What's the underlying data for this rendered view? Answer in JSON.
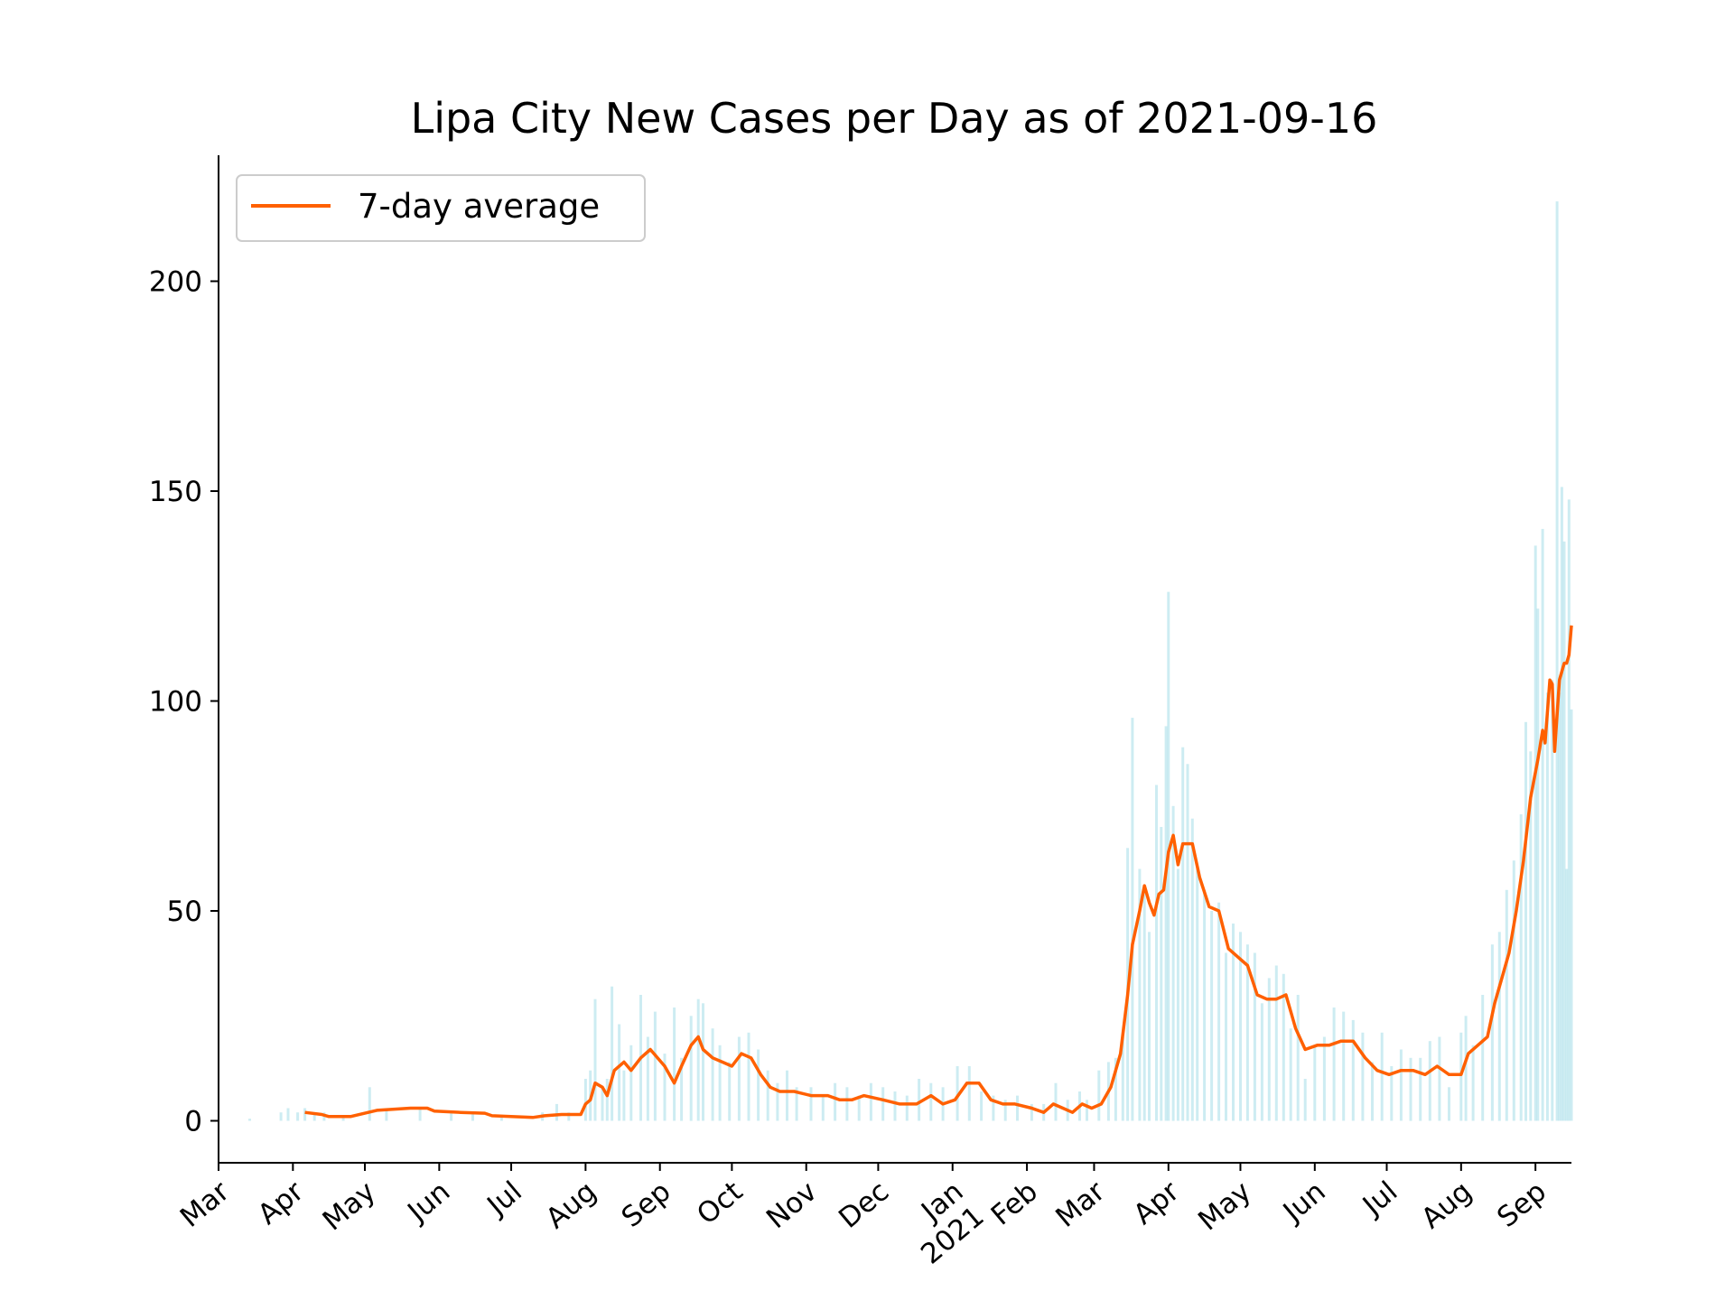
{
  "chart_data": {
    "type": "line",
    "title": "Lipa City New Cases per Day as of 2021-09-16",
    "xlabel": "",
    "ylabel": "",
    "x_range": [
      "2020-03-01",
      "2021-09-16"
    ],
    "ylim": [
      -10,
      230
    ],
    "y_ticks": [
      0,
      50,
      100,
      150,
      200
    ],
    "x_ticks": [
      {
        "date": "2020-03-01",
        "label": "Mar"
      },
      {
        "date": "2020-04-01",
        "label": "Apr"
      },
      {
        "date": "2020-05-01",
        "label": "May"
      },
      {
        "date": "2020-06-01",
        "label": "Jun"
      },
      {
        "date": "2020-07-01",
        "label": "Jul"
      },
      {
        "date": "2020-08-01",
        "label": "Aug"
      },
      {
        "date": "2020-09-01",
        "label": "Sep"
      },
      {
        "date": "2020-10-01",
        "label": "Oct"
      },
      {
        "date": "2020-11-01",
        "label": "Nov"
      },
      {
        "date": "2020-12-01",
        "label": "Dec"
      },
      {
        "date": "2021-01-01",
        "label": "Jan\n2021"
      },
      {
        "date": "2021-02-01",
        "label": "Feb"
      },
      {
        "date": "2021-03-01",
        "label": "Mar"
      },
      {
        "date": "2021-04-01",
        "label": "Apr"
      },
      {
        "date": "2021-05-01",
        "label": "May"
      },
      {
        "date": "2021-06-01",
        "label": "Jun"
      },
      {
        "date": "2021-07-01",
        "label": "Jul"
      },
      {
        "date": "2021-08-01",
        "label": "Aug"
      },
      {
        "date": "2021-09-01",
        "label": "Sep"
      }
    ],
    "grid": false,
    "legend_position": "top-left",
    "series": [
      {
        "name": "7-day average",
        "kind": "line",
        "color": "#ff6000",
        "points": [
          [
            "2020-04-06",
            2
          ],
          [
            "2020-04-13",
            1.5
          ],
          [
            "2020-04-16",
            1
          ],
          [
            "2020-04-25",
            1
          ],
          [
            "2020-05-06",
            2.5
          ],
          [
            "2020-05-20",
            3
          ],
          [
            "2020-05-27",
            3
          ],
          [
            "2020-05-30",
            2.3
          ],
          [
            "2020-06-10",
            2
          ],
          [
            "2020-06-20",
            1.8
          ],
          [
            "2020-06-23",
            1.2
          ],
          [
            "2020-07-10",
            0.8
          ],
          [
            "2020-07-15",
            1.2
          ],
          [
            "2020-07-22",
            1.5
          ],
          [
            "2020-07-30",
            1.5
          ],
          [
            "2020-08-01",
            4
          ],
          [
            "2020-08-03",
            5
          ],
          [
            "2020-08-05",
            9
          ],
          [
            "2020-08-08",
            8
          ],
          [
            "2020-08-10",
            6
          ],
          [
            "2020-08-13",
            12
          ],
          [
            "2020-08-17",
            14
          ],
          [
            "2020-08-20",
            12
          ],
          [
            "2020-08-24",
            15
          ],
          [
            "2020-08-28",
            17
          ],
          [
            "2020-09-03",
            13
          ],
          [
            "2020-09-07",
            9
          ],
          [
            "2020-09-10",
            13
          ],
          [
            "2020-09-14",
            18
          ],
          [
            "2020-09-17",
            20
          ],
          [
            "2020-09-19",
            17
          ],
          [
            "2020-09-23",
            15
          ],
          [
            "2020-09-27",
            14
          ],
          [
            "2020-10-01",
            13
          ],
          [
            "2020-10-05",
            16
          ],
          [
            "2020-10-09",
            15
          ],
          [
            "2020-10-13",
            11
          ],
          [
            "2020-10-17",
            8
          ],
          [
            "2020-10-21",
            7
          ],
          [
            "2020-10-27",
            7
          ],
          [
            "2020-11-03",
            6
          ],
          [
            "2020-11-10",
            6
          ],
          [
            "2020-11-15",
            5
          ],
          [
            "2020-11-20",
            5
          ],
          [
            "2020-11-25",
            6
          ],
          [
            "2020-12-03",
            5
          ],
          [
            "2020-12-10",
            4
          ],
          [
            "2020-12-17",
            4
          ],
          [
            "2020-12-23",
            6
          ],
          [
            "2020-12-28",
            4
          ],
          [
            "2021-01-02",
            5
          ],
          [
            "2021-01-07",
            9
          ],
          [
            "2021-01-12",
            9
          ],
          [
            "2021-01-17",
            5
          ],
          [
            "2021-01-22",
            4
          ],
          [
            "2021-01-27",
            4
          ],
          [
            "2021-02-03",
            3
          ],
          [
            "2021-02-08",
            2
          ],
          [
            "2021-02-12",
            4
          ],
          [
            "2021-02-16",
            3
          ],
          [
            "2021-02-20",
            2
          ],
          [
            "2021-02-24",
            4
          ],
          [
            "2021-02-28",
            3
          ],
          [
            "2021-03-04",
            4
          ],
          [
            "2021-03-08",
            8
          ],
          [
            "2021-03-12",
            16
          ],
          [
            "2021-03-15",
            30
          ],
          [
            "2021-03-17",
            42
          ],
          [
            "2021-03-20",
            50
          ],
          [
            "2021-03-22",
            56
          ],
          [
            "2021-03-24",
            52
          ],
          [
            "2021-03-26",
            49
          ],
          [
            "2021-03-28",
            54
          ],
          [
            "2021-03-30",
            55
          ],
          [
            "2021-04-01",
            64
          ],
          [
            "2021-04-03",
            68
          ],
          [
            "2021-04-05",
            61
          ],
          [
            "2021-04-07",
            66
          ],
          [
            "2021-04-09",
            66
          ],
          [
            "2021-04-11",
            66
          ],
          [
            "2021-04-14",
            58
          ],
          [
            "2021-04-18",
            51
          ],
          [
            "2021-04-22",
            50
          ],
          [
            "2021-04-26",
            41
          ],
          [
            "2021-04-30",
            39
          ],
          [
            "2021-05-04",
            37
          ],
          [
            "2021-05-08",
            30
          ],
          [
            "2021-05-12",
            29
          ],
          [
            "2021-05-16",
            29
          ],
          [
            "2021-05-20",
            30
          ],
          [
            "2021-05-24",
            22
          ],
          [
            "2021-05-28",
            17
          ],
          [
            "2021-06-02",
            18
          ],
          [
            "2021-06-07",
            18
          ],
          [
            "2021-06-12",
            19
          ],
          [
            "2021-06-17",
            19
          ],
          [
            "2021-06-22",
            15
          ],
          [
            "2021-06-27",
            12
          ],
          [
            "2021-07-02",
            11
          ],
          [
            "2021-07-07",
            12
          ],
          [
            "2021-07-12",
            12
          ],
          [
            "2021-07-17",
            11
          ],
          [
            "2021-07-22",
            13
          ],
          [
            "2021-07-27",
            11
          ],
          [
            "2021-08-01",
            11
          ],
          [
            "2021-08-04",
            16
          ],
          [
            "2021-08-08",
            18
          ],
          [
            "2021-08-12",
            20
          ],
          [
            "2021-08-15",
            28
          ],
          [
            "2021-08-18",
            34
          ],
          [
            "2021-08-21",
            40
          ],
          [
            "2021-08-24",
            50
          ],
          [
            "2021-08-27",
            62
          ],
          [
            "2021-08-30",
            77
          ],
          [
            "2021-09-02",
            86
          ],
          [
            "2021-09-04",
            93
          ],
          [
            "2021-09-05",
            90
          ],
          [
            "2021-09-07",
            105
          ],
          [
            "2021-09-08",
            104
          ],
          [
            "2021-09-09",
            88
          ],
          [
            "2021-09-11",
            105
          ],
          [
            "2021-09-13",
            109
          ],
          [
            "2021-09-14",
            109
          ],
          [
            "2021-09-15",
            111
          ],
          [
            "2021-09-16",
            118
          ]
        ]
      },
      {
        "name": "",
        "kind": "bars",
        "color": "#a4dde8",
        "points": [
          [
            "2020-03-14",
            0.5
          ],
          [
            "2020-03-27",
            2
          ],
          [
            "2020-03-30",
            3
          ],
          [
            "2020-04-03",
            2
          ],
          [
            "2020-04-06",
            3
          ],
          [
            "2020-04-10",
            2
          ],
          [
            "2020-04-14",
            2
          ],
          [
            "2020-04-22",
            1
          ],
          [
            "2020-05-03",
            8
          ],
          [
            "2020-05-10",
            3
          ],
          [
            "2020-05-24",
            3
          ],
          [
            "2020-06-06",
            2
          ],
          [
            "2020-06-15",
            2
          ],
          [
            "2020-06-27",
            1
          ],
          [
            "2020-07-14",
            2
          ],
          [
            "2020-07-20",
            4
          ],
          [
            "2020-07-25",
            2
          ],
          [
            "2020-08-01",
            10
          ],
          [
            "2020-08-03",
            12
          ],
          [
            "2020-08-05",
            29
          ],
          [
            "2020-08-08",
            8
          ],
          [
            "2020-08-10",
            10
          ],
          [
            "2020-08-12",
            32
          ],
          [
            "2020-08-15",
            23
          ],
          [
            "2020-08-17",
            12
          ],
          [
            "2020-08-20",
            18
          ],
          [
            "2020-08-24",
            30
          ],
          [
            "2020-08-27",
            20
          ],
          [
            "2020-08-30",
            26
          ],
          [
            "2020-09-03",
            16
          ],
          [
            "2020-09-07",
            27
          ],
          [
            "2020-09-10",
            15
          ],
          [
            "2020-09-14",
            25
          ],
          [
            "2020-09-17",
            29
          ],
          [
            "2020-09-19",
            28
          ],
          [
            "2020-09-23",
            22
          ],
          [
            "2020-09-26",
            18
          ],
          [
            "2020-09-30",
            14
          ],
          [
            "2020-10-04",
            20
          ],
          [
            "2020-10-08",
            21
          ],
          [
            "2020-10-12",
            17
          ],
          [
            "2020-10-16",
            12
          ],
          [
            "2020-10-20",
            9
          ],
          [
            "2020-10-24",
            12
          ],
          [
            "2020-10-28",
            8
          ],
          [
            "2020-11-03",
            8
          ],
          [
            "2020-11-08",
            6
          ],
          [
            "2020-11-13",
            9
          ],
          [
            "2020-11-18",
            8
          ],
          [
            "2020-11-23",
            6
          ],
          [
            "2020-11-28",
            9
          ],
          [
            "2020-12-03",
            8
          ],
          [
            "2020-12-08",
            7
          ],
          [
            "2020-12-13",
            6
          ],
          [
            "2020-12-18",
            10
          ],
          [
            "2020-12-23",
            9
          ],
          [
            "2020-12-28",
            8
          ],
          [
            "2021-01-03",
            13
          ],
          [
            "2021-01-08",
            13
          ],
          [
            "2021-01-13",
            7
          ],
          [
            "2021-01-18",
            6
          ],
          [
            "2021-01-23",
            5
          ],
          [
            "2021-01-28",
            6
          ],
          [
            "2021-02-03",
            4
          ],
          [
            "2021-02-08",
            4
          ],
          [
            "2021-02-13",
            9
          ],
          [
            "2021-02-18",
            5
          ],
          [
            "2021-02-23",
            7
          ],
          [
            "2021-02-26",
            5
          ],
          [
            "2021-03-03",
            12
          ],
          [
            "2021-03-07",
            14
          ],
          [
            "2021-03-10",
            15
          ],
          [
            "2021-03-13",
            20
          ],
          [
            "2021-03-15",
            65
          ],
          [
            "2021-03-17",
            96
          ],
          [
            "2021-03-20",
            60
          ],
          [
            "2021-03-22",
            56
          ],
          [
            "2021-03-24",
            45
          ],
          [
            "2021-03-27",
            80
          ],
          [
            "2021-03-29",
            70
          ],
          [
            "2021-03-31",
            94
          ],
          [
            "2021-04-01",
            126
          ],
          [
            "2021-04-03",
            75
          ],
          [
            "2021-04-05",
            60
          ],
          [
            "2021-04-07",
            89
          ],
          [
            "2021-04-09",
            85
          ],
          [
            "2021-04-11",
            72
          ],
          [
            "2021-04-13",
            60
          ],
          [
            "2021-04-16",
            55
          ],
          [
            "2021-04-19",
            50
          ],
          [
            "2021-04-22",
            52
          ],
          [
            "2021-04-25",
            40
          ],
          [
            "2021-04-28",
            47
          ],
          [
            "2021-05-01",
            45
          ],
          [
            "2021-05-04",
            42
          ],
          [
            "2021-05-07",
            40
          ],
          [
            "2021-05-10",
            28
          ],
          [
            "2021-05-13",
            34
          ],
          [
            "2021-05-16",
            37
          ],
          [
            "2021-05-19",
            35
          ],
          [
            "2021-05-22",
            22
          ],
          [
            "2021-05-25",
            30
          ],
          [
            "2021-05-28",
            10
          ],
          [
            "2021-06-01",
            18
          ],
          [
            "2021-06-05",
            20
          ],
          [
            "2021-06-09",
            27
          ],
          [
            "2021-06-13",
            26
          ],
          [
            "2021-06-17",
            24
          ],
          [
            "2021-06-21",
            21
          ],
          [
            "2021-06-25",
            14
          ],
          [
            "2021-06-29",
            21
          ],
          [
            "2021-07-03",
            13
          ],
          [
            "2021-07-07",
            17
          ],
          [
            "2021-07-11",
            15
          ],
          [
            "2021-07-15",
            15
          ],
          [
            "2021-07-19",
            19
          ],
          [
            "2021-07-23",
            20
          ],
          [
            "2021-07-27",
            8
          ],
          [
            "2021-08-01",
            21
          ],
          [
            "2021-08-03",
            25
          ],
          [
            "2021-08-06",
            18
          ],
          [
            "2021-08-10",
            30
          ],
          [
            "2021-08-14",
            42
          ],
          [
            "2021-08-17",
            45
          ],
          [
            "2021-08-20",
            55
          ],
          [
            "2021-08-23",
            62
          ],
          [
            "2021-08-26",
            73
          ],
          [
            "2021-08-28",
            95
          ],
          [
            "2021-08-30",
            88
          ],
          [
            "2021-09-01",
            137
          ],
          [
            "2021-09-02",
            122
          ],
          [
            "2021-09-04",
            141
          ],
          [
            "2021-09-06",
            102
          ],
          [
            "2021-09-08",
            105
          ],
          [
            "2021-09-10",
            219
          ],
          [
            "2021-09-11",
            102
          ],
          [
            "2021-09-12",
            151
          ],
          [
            "2021-09-13",
            138
          ],
          [
            "2021-09-14",
            60
          ],
          [
            "2021-09-15",
            148
          ],
          [
            "2021-09-16",
            98
          ]
        ]
      }
    ]
  }
}
